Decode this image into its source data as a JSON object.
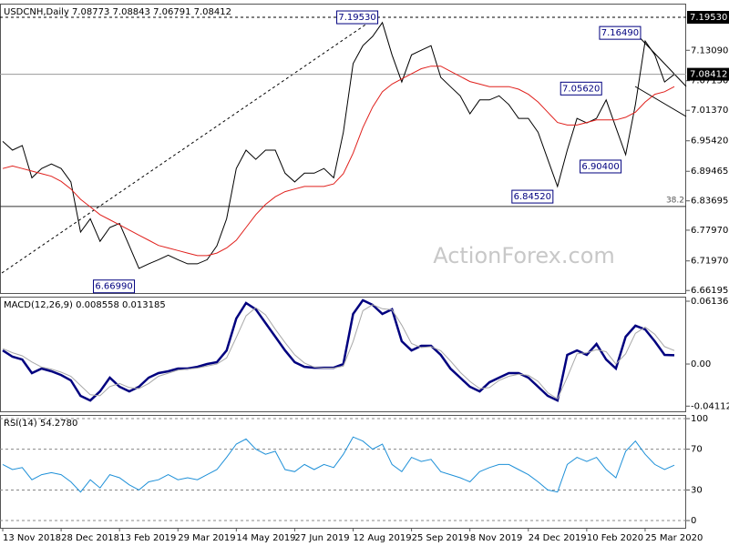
{
  "watermark": "ActionForex.com",
  "chart_data": [
    {
      "type": "line",
      "title": "USDCNH,Daily  7.08773 7.08843 7.06791 7.08412",
      "categories": [
        "13 Nov 2018",
        null,
        null,
        null,
        null,
        null,
        "28 Dec 2018",
        null,
        null,
        null,
        null,
        null,
        "13 Feb 2019",
        null,
        null,
        null,
        null,
        null,
        "29 Mar 2019",
        null,
        null,
        null,
        null,
        null,
        "14 May 2019",
        null,
        null,
        null,
        null,
        null,
        "27 Jun 2019",
        null,
        null,
        null,
        null,
        null,
        "12 Aug 2019",
        null,
        null,
        null,
        null,
        null,
        "25 Sep 2019",
        null,
        null,
        null,
        null,
        null,
        "8 Nov 2019",
        null,
        null,
        null,
        null,
        null,
        "24 Dec 2019",
        null,
        null,
        null,
        null,
        null,
        "10 Feb 2020",
        null,
        null,
        null,
        null,
        null,
        "25 Mar 2020",
        null,
        null,
        null
      ],
      "series": [
        {
          "color": "#000000",
          "values": [
            6.953,
            6.936,
            6.945,
            6.882,
            6.9,
            6.909,
            6.9,
            6.874,
            6.776,
            6.802,
            6.758,
            6.785,
            6.793,
            6.749,
            6.705,
            6.714,
            6.722,
            6.731,
            6.722,
            6.714,
            6.714,
            6.722,
            6.749,
            6.802,
            6.9,
            6.936,
            6.918,
            6.936,
            6.936,
            6.891,
            6.874,
            6.891,
            6.891,
            6.9,
            6.882,
            6.971,
            7.105,
            7.14,
            7.158,
            7.185,
            7.122,
            7.069,
            7.122,
            7.131,
            7.14,
            7.078,
            7.06,
            7.042,
            7.007,
            7.034,
            7.034,
            7.042,
            7.025,
            6.998,
            6.998,
            6.971,
            6.918,
            6.865,
            6.936,
            6.998,
            6.989,
            6.998,
            7.034,
            6.98,
            6.927,
            7.025,
            7.149,
            7.122,
            7.069,
            7.084
          ]
        },
        {
          "color": "#e0201c",
          "values": [
            6.9,
            6.905,
            6.9,
            6.895,
            6.89,
            6.885,
            6.875,
            6.86,
            6.84,
            6.825,
            6.81,
            6.8,
            6.79,
            6.78,
            6.77,
            6.76,
            6.75,
            6.745,
            6.74,
            6.735,
            6.73,
            6.73,
            6.735,
            6.745,
            6.76,
            6.785,
            6.81,
            6.83,
            6.845,
            6.855,
            6.86,
            6.865,
            6.865,
            6.865,
            6.87,
            6.89,
            6.93,
            6.98,
            7.02,
            7.05,
            7.065,
            7.075,
            7.085,
            7.095,
            7.1,
            7.1,
            7.09,
            7.08,
            7.07,
            7.065,
            7.06,
            7.06,
            7.06,
            7.055,
            7.045,
            7.03,
            7.01,
            6.99,
            6.985,
            6.985,
            6.99,
            6.995,
            6.995,
            6.995,
            7.0,
            7.01,
            7.03,
            7.045,
            7.05,
            7.06
          ]
        }
      ],
      "ylim": [
        6.657,
        7.222
      ],
      "yticks": [
        {
          "value": 7.1309,
          "label": "7.13090"
        },
        {
          "value": 7.0715,
          "label": "7.07150"
        },
        {
          "value": 7.0137,
          "label": "7.01370"
        },
        {
          "value": 6.9542,
          "label": "6.95420"
        },
        {
          "value": 6.89465,
          "label": "6.89465"
        },
        {
          "value": 6.83695,
          "label": "6.83695"
        },
        {
          "value": 6.7797,
          "label": "6.77970"
        },
        {
          "value": 6.7197,
          "label": "6.71970"
        },
        {
          "value": 6.66195,
          "label": "6.66195"
        }
      ],
      "hlines": [
        {
          "value": 7.1953,
          "label": "7.19530",
          "style": "dashed"
        },
        {
          "value": 7.08412,
          "label": "7.08412",
          "style": "solid"
        }
      ],
      "fib": {
        "value": 6.826,
        "label": "38.2"
      },
      "annotations": [
        {
          "x": 39,
          "value": 7.1953,
          "label": "7.19530"
        },
        {
          "x": 66,
          "value": 7.1649,
          "label": "7.16490"
        },
        {
          "x": 62,
          "value": 7.0562,
          "label": "7.05620"
        },
        {
          "x": 64,
          "value": 6.904,
          "label": "6.90400"
        },
        {
          "x": 57,
          "value": 6.8452,
          "label": "6.84520"
        },
        {
          "x": 14,
          "value": 6.6699,
          "label": "6.66990"
        }
      ],
      "grid": false
    },
    {
      "type": "line",
      "title": "MACD(12,26,9) 0.008558 0.013185",
      "series": [
        {
          "color": "#00007f",
          "values": [
            0.0133,
            0.0071,
            0.0044,
            -0.0089,
            -0.0044,
            -0.0071,
            -0.0107,
            -0.016,
            -0.0311,
            -0.0356,
            -0.0267,
            -0.0133,
            -0.0222,
            -0.0267,
            -0.0222,
            -0.0133,
            -0.0089,
            -0.0071,
            -0.0044,
            -0.0044,
            -0.0027,
            0,
            0.0018,
            0.0133,
            0.0445,
            0.0596,
            0.0534,
            0.04,
            0.0267,
            0.0133,
            0.0018,
            -0.0027,
            -0.0036,
            -0.0036,
            -0.0036,
            0,
            0.0489,
            0.0623,
            0.0578,
            0.0489,
            0.0534,
            0.0222,
            0.0133,
            0.0178,
            0.0178,
            0.0089,
            -0.0044,
            -0.0133,
            -0.0222,
            -0.0267,
            -0.0178,
            -0.0133,
            -0.0089,
            -0.0089,
            -0.0133,
            -0.0222,
            -0.0311,
            -0.0356,
            0.0089,
            0.0133,
            0.0089,
            0.0196,
            0.0044,
            -0.0044,
            0.0267,
            0.0374,
            0.0338,
            0.0222,
            0.0089,
            0.008558
          ]
        },
        {
          "color": "#a8a8a8",
          "values": [
            0.015,
            0.011,
            0.008,
            0.002,
            -0.003,
            -0.005,
            -0.008,
            -0.012,
            -0.021,
            -0.03,
            -0.031,
            -0.022,
            -0.019,
            -0.023,
            -0.024,
            -0.019,
            -0.012,
            -0.009,
            -0.006,
            -0.005,
            -0.004,
            -0.002,
            0.0,
            0.006,
            0.026,
            0.047,
            0.055,
            0.048,
            0.034,
            0.021,
            0.009,
            0.001,
            -0.003,
            -0.004,
            -0.004,
            -0.002,
            0.022,
            0.052,
            0.058,
            0.054,
            0.053,
            0.038,
            0.02,
            0.016,
            0.017,
            0.013,
            0.003,
            -0.008,
            -0.017,
            -0.024,
            -0.023,
            -0.016,
            -0.012,
            -0.01,
            -0.011,
            -0.017,
            -0.028,
            -0.034,
            -0.013,
            0.01,
            0.011,
            0.014,
            0.012,
            0.0,
            0.01,
            0.03,
            0.036,
            0.029,
            0.017,
            0.013185
          ]
        }
      ],
      "ylim": [
        -0.0462,
        0.0658
      ],
      "yticks": [
        0.061363,
        {
          "value": 0,
          "label": "0.00"
        },
        -0.041124
      ],
      "grid": false
    },
    {
      "type": "line",
      "title": "RSI(14) 54.2780",
      "series": [
        {
          "color": "#1e90d8",
          "values": [
            55,
            50,
            52,
            40,
            45,
            47,
            45,
            38,
            28,
            40,
            32,
            45,
            42,
            35,
            30,
            38,
            40,
            45,
            40,
            42,
            40,
            45,
            50,
            62,
            75,
            80,
            70,
            65,
            68,
            50,
            48,
            55,
            50,
            55,
            52,
            65,
            82,
            78,
            70,
            75,
            55,
            48,
            62,
            58,
            60,
            48,
            45,
            42,
            38,
            48,
            52,
            55,
            55,
            50,
            45,
            38,
            30,
            28,
            55,
            62,
            58,
            62,
            50,
            42,
            68,
            78,
            65,
            55,
            50,
            54.278
          ]
        }
      ],
      "ylim": [
        -7.1,
        103.6
      ],
      "yticks": [
        100,
        70,
        30,
        0
      ],
      "grid": true
    }
  ]
}
